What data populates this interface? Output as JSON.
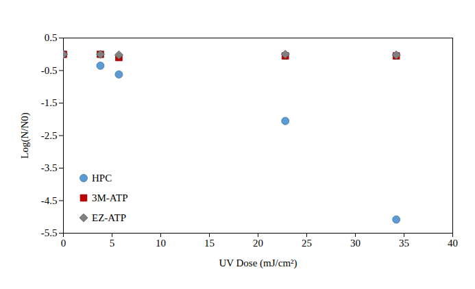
{
  "chart_data": {
    "type": "scatter",
    "x_label": "UV Dose (mJ/cm²)",
    "y_label": "Log(N/N0)",
    "xlim": [
      0,
      40
    ],
    "xticks": [
      0,
      5,
      10,
      15,
      20,
      25,
      30,
      35,
      40
    ],
    "ylim": [
      -5.5,
      0.5
    ],
    "yticks": [
      0.5,
      -0.5,
      -1.5,
      -2.5,
      -3.5,
      -4.5,
      -5.5
    ],
    "grid": false,
    "legend": "bottom-left",
    "series": [
      {
        "name": "HPC",
        "color": "#5b9bd5",
        "marker": "circle",
        "x": [
          0,
          3.8,
          5.7,
          22.8,
          34.2
        ],
        "values": [
          0,
          -0.35,
          -0.62,
          -2.05,
          -5.08
        ]
      },
      {
        "name": "3M-ATP",
        "color": "#c00000",
        "marker": "square",
        "x": [
          0,
          3.8,
          5.7,
          22.8,
          34.2
        ],
        "values": [
          0,
          0,
          -0.1,
          -0.05,
          -0.05
        ]
      },
      {
        "name": "EZ-ATP",
        "color": "#808080",
        "marker": "diamond",
        "x": [
          0,
          3.8,
          5.7,
          22.8,
          34.2
        ],
        "values": [
          0,
          0,
          -0.02,
          0,
          -0.02
        ]
      }
    ]
  }
}
